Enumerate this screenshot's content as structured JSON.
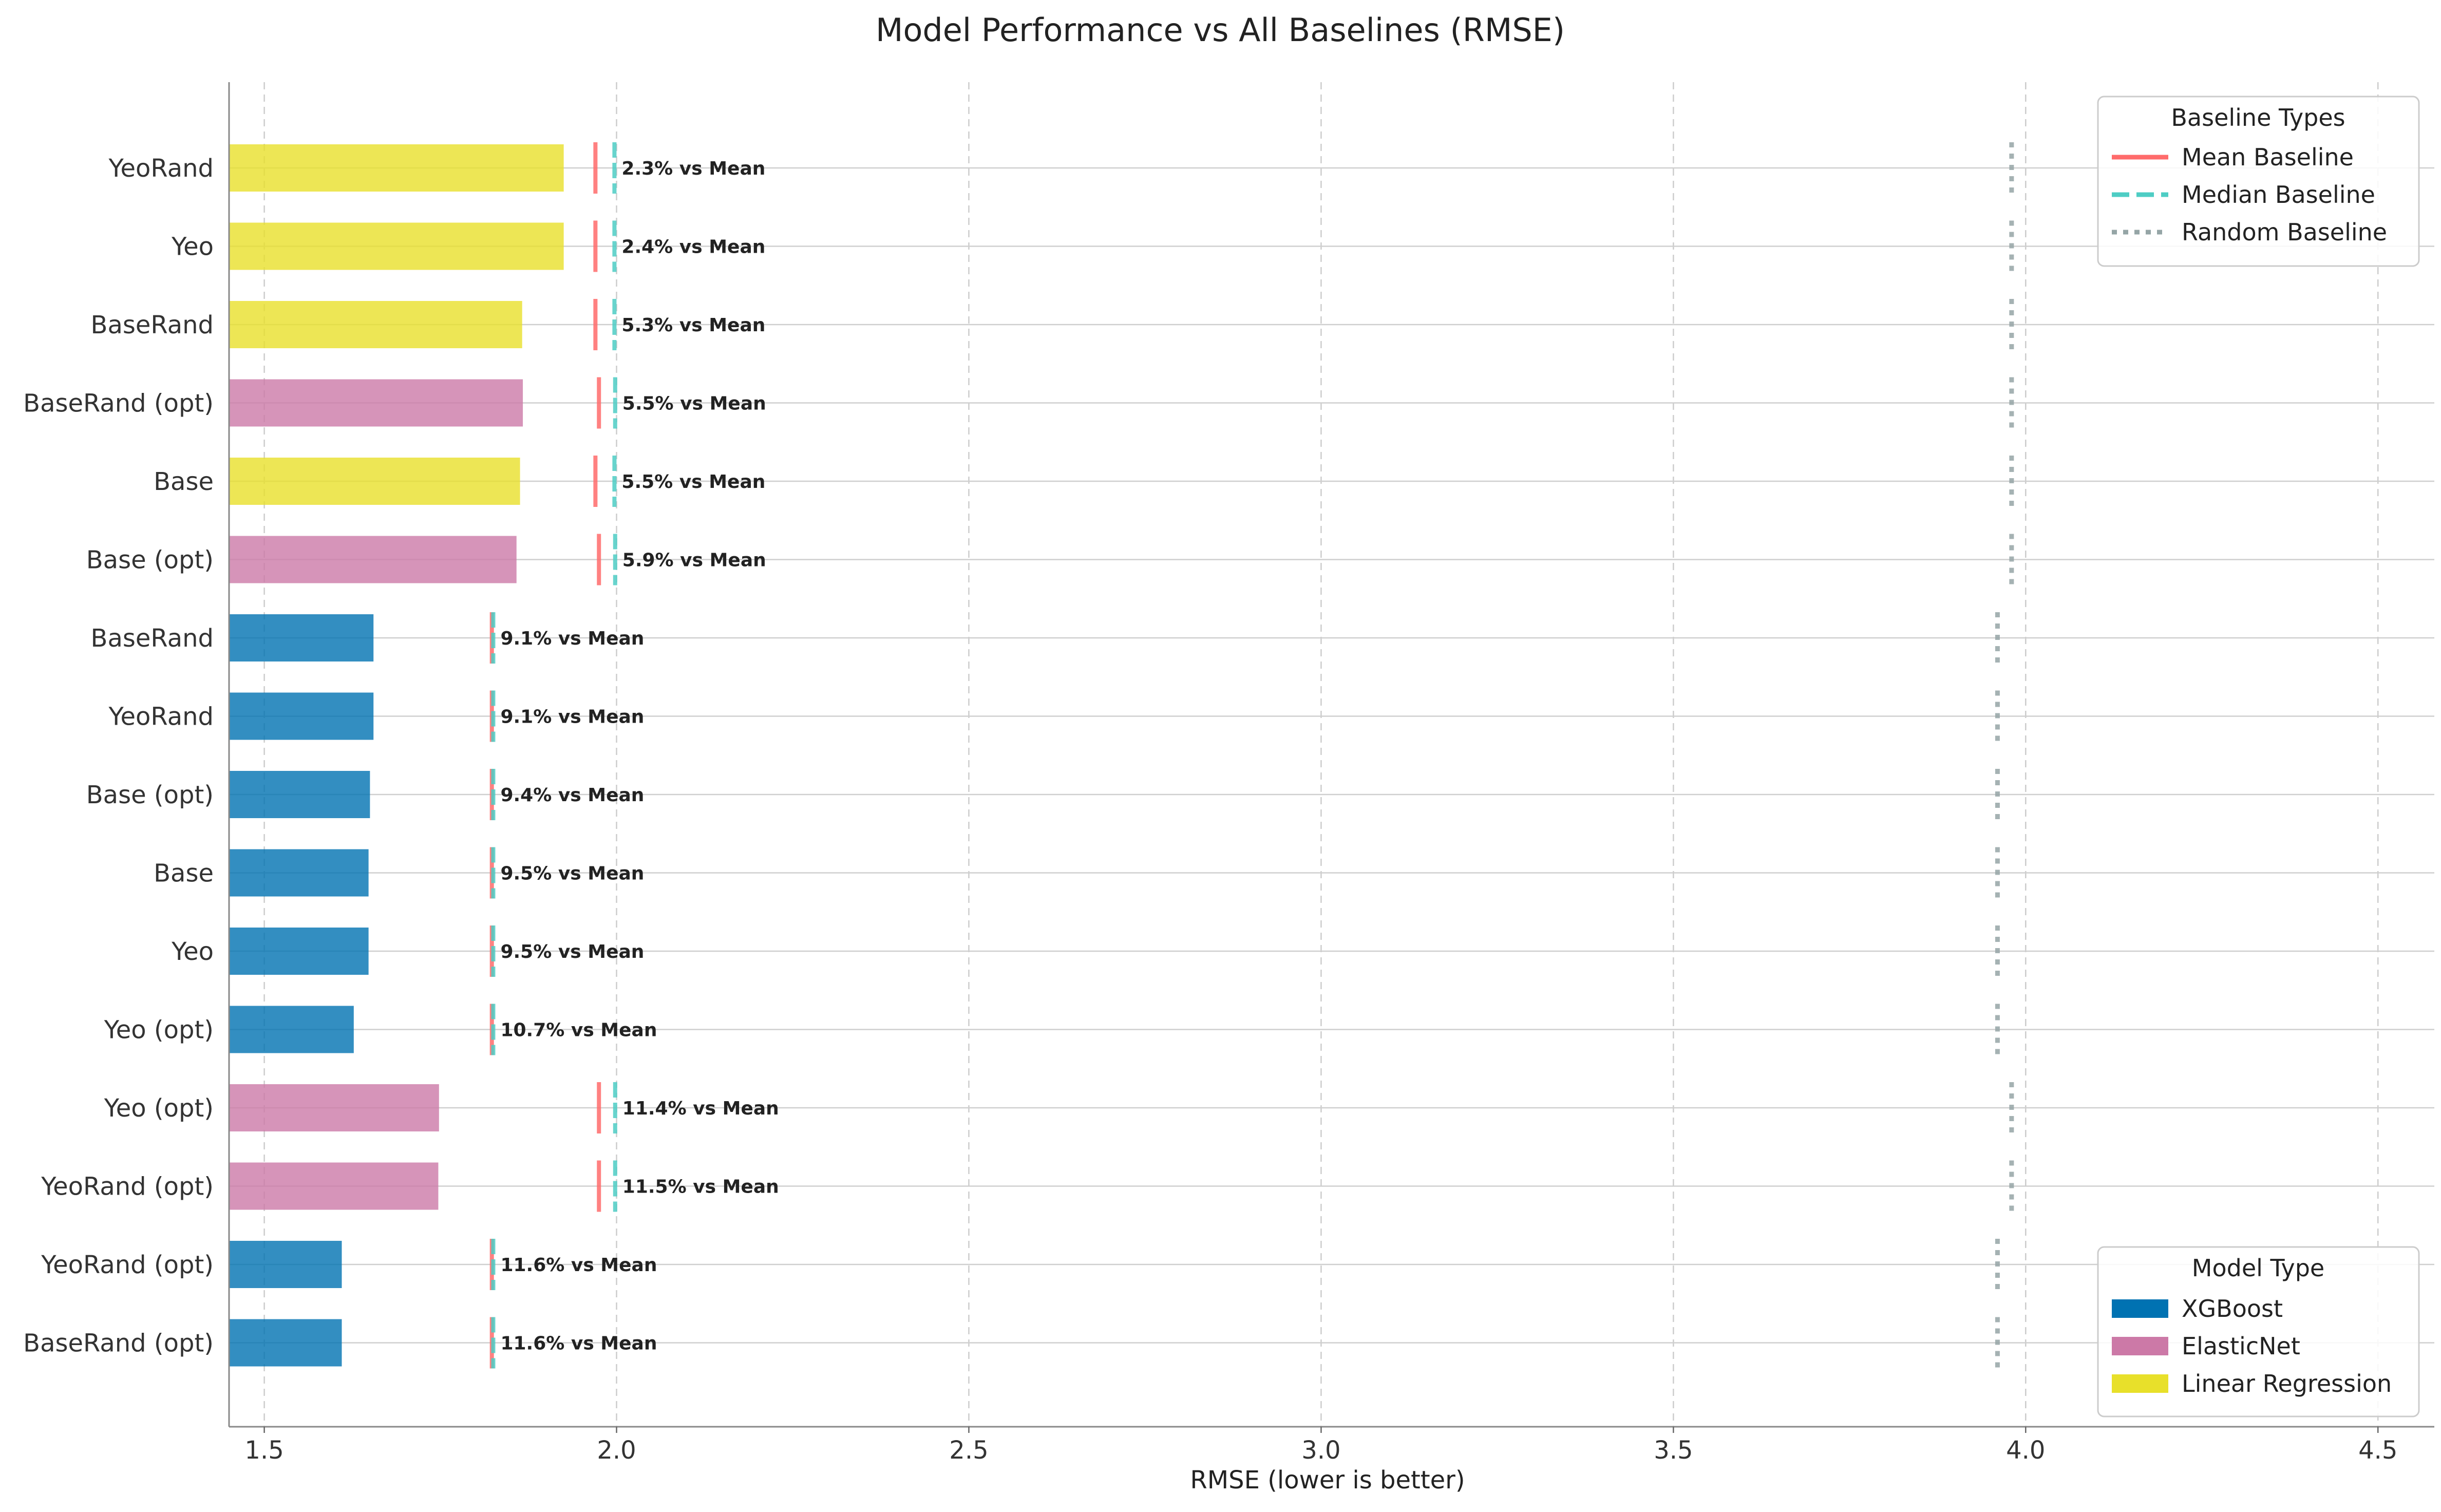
{
  "chart_data": {
    "type": "bar",
    "orientation": "horizontal",
    "title": "Model Performance vs All Baselines (RMSE)",
    "xlabel": "RMSE (lower is better)",
    "ylabel": "",
    "xlim": [
      1.45,
      4.58
    ],
    "xticks": [
      1.5,
      2.0,
      2.5,
      3.0,
      3.5,
      4.0,
      4.5
    ],
    "xtick_labels": [
      "1.5",
      "2.0",
      "2.5",
      "3.0",
      "3.5",
      "4.0",
      "4.5"
    ],
    "grid": {
      "x": "dashed",
      "y": "solid-at-categories"
    },
    "model_types": [
      {
        "name": "XGBoost",
        "color": "#0072B2"
      },
      {
        "name": "ElasticNet",
        "color": "#CC79A7"
      },
      {
        "name": "Linear Regression",
        "color": "#E8E02A"
      }
    ],
    "baseline_types": [
      {
        "name": "Mean Baseline",
        "color": "#FF6B6B",
        "style": "solid"
      },
      {
        "name": "Median Baseline",
        "color": "#4ECDC4",
        "style": "dashed"
      },
      {
        "name": "Random Baseline",
        "color": "#95A5A6",
        "style": "dotted"
      }
    ],
    "legend_models_title": "Model Type",
    "legend_baselines_title": "Baseline Types",
    "legend_models_placement": "bottom-right",
    "legend_baselines_placement": "top-right",
    "rows": [
      {
        "label": "YeoRand",
        "model": "Linear Regression",
        "rmse": 1.925,
        "mean_baseline": 1.97,
        "median_baseline": 1.997,
        "random_baseline": 3.98,
        "annotation": "2.3% vs Mean"
      },
      {
        "label": "Yeo",
        "model": "Linear Regression",
        "rmse": 1.925,
        "mean_baseline": 1.97,
        "median_baseline": 1.997,
        "random_baseline": 3.98,
        "annotation": "2.4% vs Mean"
      },
      {
        "label": "BaseRand",
        "model": "Linear Regression",
        "rmse": 1.866,
        "mean_baseline": 1.97,
        "median_baseline": 1.997,
        "random_baseline": 3.98,
        "annotation": "5.3% vs Mean"
      },
      {
        "label": "BaseRand (opt)",
        "model": "ElasticNet",
        "rmse": 1.867,
        "mean_baseline": 1.975,
        "median_baseline": 1.998,
        "random_baseline": 3.98,
        "annotation": "5.5% vs Mean"
      },
      {
        "label": "Base",
        "model": "Linear Regression",
        "rmse": 1.863,
        "mean_baseline": 1.97,
        "median_baseline": 1.997,
        "random_baseline": 3.98,
        "annotation": "5.5% vs Mean"
      },
      {
        "label": "Base (opt)",
        "model": "ElasticNet",
        "rmse": 1.858,
        "mean_baseline": 1.975,
        "median_baseline": 1.998,
        "random_baseline": 3.98,
        "annotation": "5.9% vs Mean"
      },
      {
        "label": "BaseRand",
        "model": "XGBoost",
        "rmse": 1.655,
        "mean_baseline": 1.823,
        "median_baseline": 1.825,
        "random_baseline": 3.96,
        "annotation": "9.1% vs Mean"
      },
      {
        "label": "YeoRand",
        "model": "XGBoost",
        "rmse": 1.655,
        "mean_baseline": 1.823,
        "median_baseline": 1.825,
        "random_baseline": 3.96,
        "annotation": "9.1% vs Mean"
      },
      {
        "label": "Base (opt)",
        "model": "XGBoost",
        "rmse": 1.65,
        "mean_baseline": 1.823,
        "median_baseline": 1.825,
        "random_baseline": 3.96,
        "annotation": "9.4% vs Mean"
      },
      {
        "label": "Base",
        "model": "XGBoost",
        "rmse": 1.648,
        "mean_baseline": 1.823,
        "median_baseline": 1.825,
        "random_baseline": 3.96,
        "annotation": "9.5% vs Mean"
      },
      {
        "label": "Yeo",
        "model": "XGBoost",
        "rmse": 1.648,
        "mean_baseline": 1.823,
        "median_baseline": 1.825,
        "random_baseline": 3.96,
        "annotation": "9.5% vs Mean"
      },
      {
        "label": "Yeo (opt)",
        "model": "XGBoost",
        "rmse": 1.627,
        "mean_baseline": 1.823,
        "median_baseline": 1.825,
        "random_baseline": 3.96,
        "annotation": "10.7% vs Mean"
      },
      {
        "label": "Yeo (opt)",
        "model": "ElasticNet",
        "rmse": 1.748,
        "mean_baseline": 1.975,
        "median_baseline": 1.998,
        "random_baseline": 3.98,
        "annotation": "11.4% vs Mean"
      },
      {
        "label": "YeoRand (opt)",
        "model": "ElasticNet",
        "rmse": 1.747,
        "mean_baseline": 1.975,
        "median_baseline": 1.998,
        "random_baseline": 3.98,
        "annotation": "11.5% vs Mean"
      },
      {
        "label": "YeoRand (opt)",
        "model": "XGBoost",
        "rmse": 1.61,
        "mean_baseline": 1.823,
        "median_baseline": 1.825,
        "random_baseline": 3.96,
        "annotation": "11.6% vs Mean"
      },
      {
        "label": "BaseRand (opt)",
        "model": "XGBoost",
        "rmse": 1.61,
        "mean_baseline": 1.823,
        "median_baseline": 1.825,
        "random_baseline": 3.96,
        "annotation": "11.6% vs Mean"
      }
    ]
  }
}
